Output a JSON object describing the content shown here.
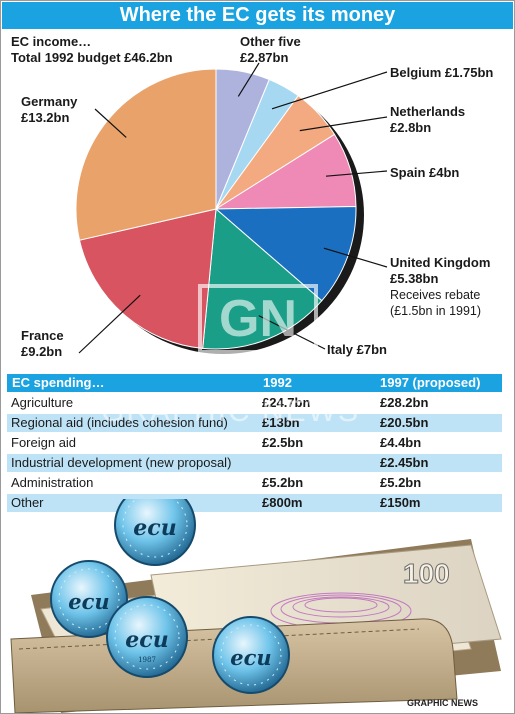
{
  "title": "Where the EC gets its money",
  "credit": "GRAPHIC NEWS",
  "watermark": "GRAPHIC NEWS",
  "income_heading": [
    "EC income…",
    "Total 1992 budget £46.2bn"
  ],
  "colors": {
    "accent": "#1aa3e0",
    "row_shade": "#bfe3f6",
    "other_five": "#aeb3de",
    "belgium": "#a6d8f2",
    "netherlands": "#f3aa80",
    "spain": "#ef89b5",
    "united_kingdom": "#1b6fc0",
    "italy": "#1a9e88",
    "france": "#d85461",
    "germany": "#e9a36a"
  },
  "chart_data": [
    {
      "type": "pie",
      "title": "Where the EC gets its money",
      "subtitle": "EC income… Total 1992 budget £46.2bn",
      "total_label": "Total 1992 budget £46.2bn",
      "slices": [
        {
          "name": "Other five",
          "value": 2.87,
          "label": "£2.87bn",
          "color": "#aeb3de"
        },
        {
          "name": "Belgium",
          "value": 1.75,
          "label": "£1.75bn",
          "color": "#a6d8f2"
        },
        {
          "name": "Netherlands",
          "value": 2.8,
          "label": "£2.8bn",
          "color": "#f3aa80"
        },
        {
          "name": "Spain",
          "value": 4,
          "label": "£4bn",
          "color": "#ef89b5"
        },
        {
          "name": "United Kingdom",
          "value": 5.38,
          "label": "£5.38bn",
          "color": "#1b6fc0",
          "note": [
            "Receives rebate",
            "(£1.5bn in 1991)"
          ]
        },
        {
          "name": "Italy",
          "value": 7,
          "label": "£7bn",
          "color": "#1a9e88"
        },
        {
          "name": "France",
          "value": 9.2,
          "label": "£9.2bn",
          "color": "#d85461"
        },
        {
          "name": "Germany",
          "value": 13.2,
          "label": "£13.2bn",
          "color": "#e9a36a"
        }
      ]
    },
    {
      "type": "table",
      "title": "EC spending…",
      "columns": [
        "1992",
        "1997 (proposed)"
      ],
      "rows": [
        {
          "label": "Agriculture",
          "y1992": "£24.7bn",
          "y1997": "£28.2bn"
        },
        {
          "label": "Regional aid (includes cohesion fund)",
          "y1992": "£13bn",
          "y1997": "£20.5bn"
        },
        {
          "label": "Foreign aid",
          "y1992": "£2.5bn",
          "y1997": "£4.4bn"
        },
        {
          "label": "Industrial development (new proposal)",
          "y1992": "",
          "y1997": "£2.45bn"
        },
        {
          "label": "Administration",
          "y1992": "£5.2bn",
          "y1997": "£5.2bn"
        },
        {
          "label": "Other",
          "y1992": "£800m",
          "y1997": "£150m"
        }
      ]
    }
  ],
  "wallet": {
    "banknote_value": "100",
    "coin_text": "ecu",
    "coin_year": "1987",
    "coin_mark": "5"
  }
}
